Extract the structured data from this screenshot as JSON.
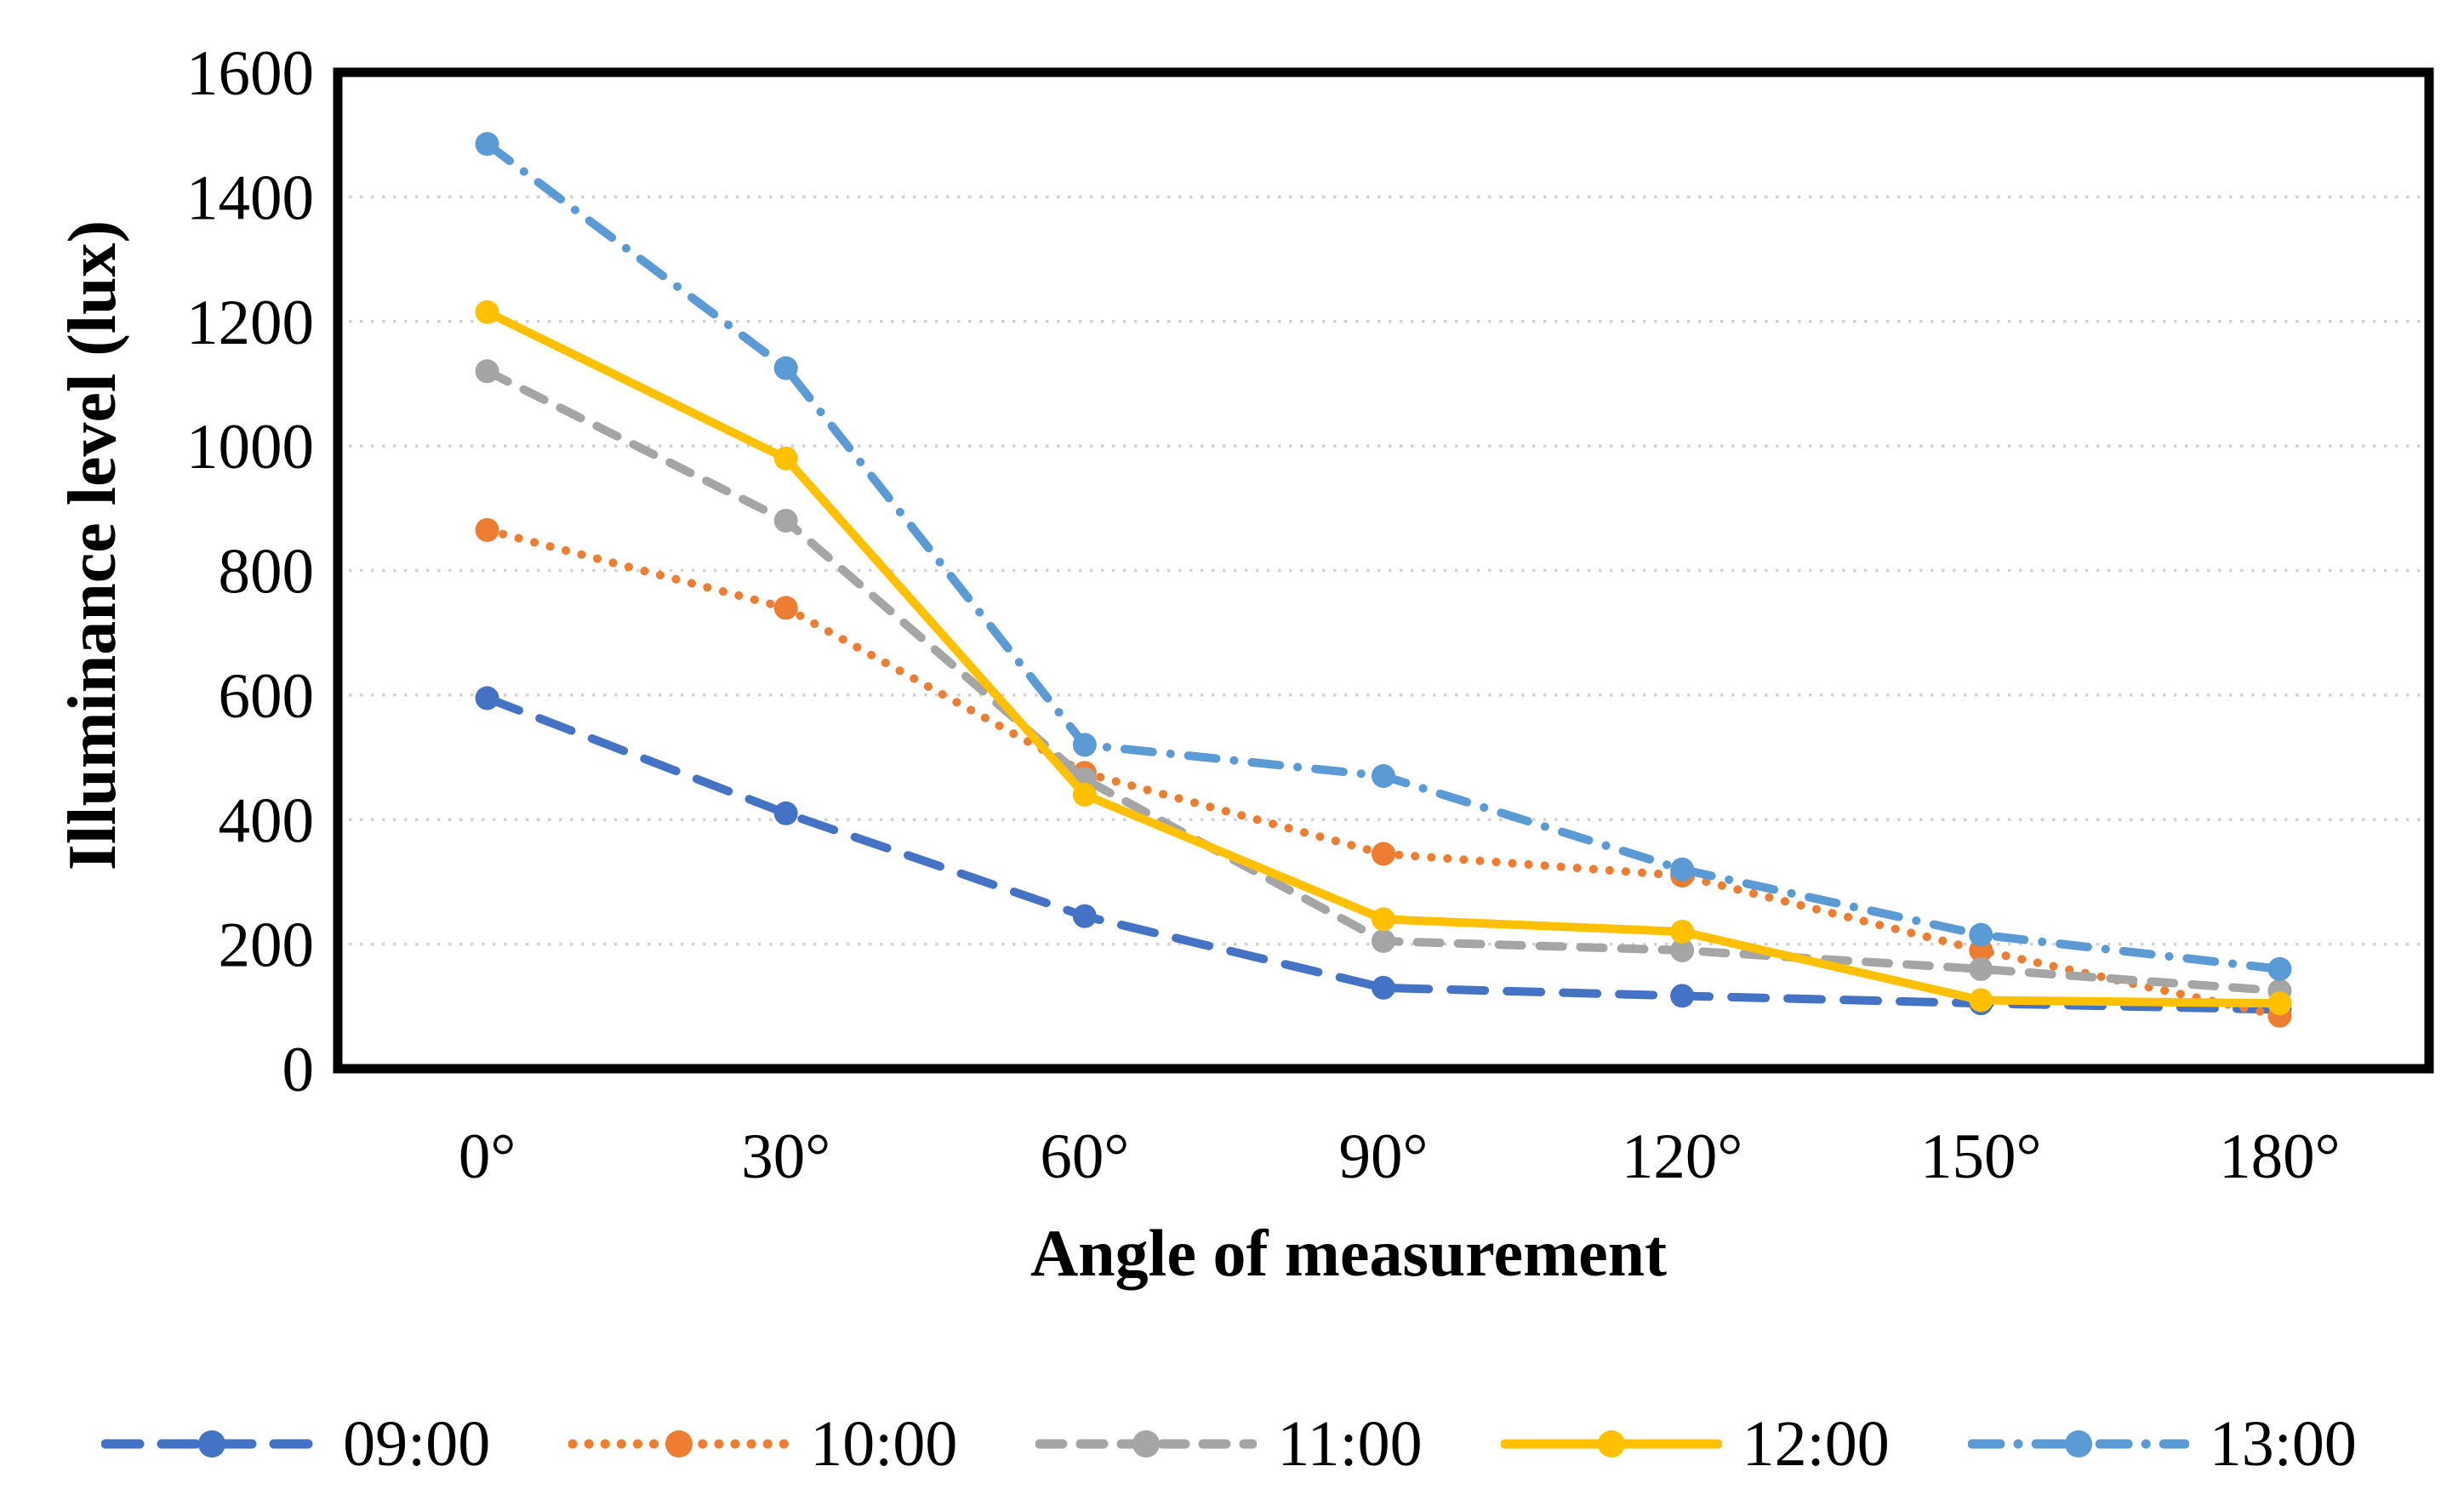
{
  "figure": {
    "background": "#ffffff",
    "axis_color": "#000000",
    "gridline_color": "#d2d2d2"
  },
  "chart_data": {
    "type": "line",
    "title": "",
    "xlabel": "Angle of measurement",
    "ylabel": "Illuminance level (lux)",
    "categories": [
      "0°",
      "30°",
      "60°",
      "90°",
      "120°",
      "150°",
      "180°"
    ],
    "y_ticks": [
      0,
      200,
      400,
      600,
      800,
      1000,
      1200,
      1400,
      1600
    ],
    "ylim": [
      0,
      1600
    ],
    "grid": "horizontal-dotted",
    "legend_position": "bottom",
    "series": [
      {
        "name": "09:00",
        "color": "#4472C4",
        "dash": "long-dash",
        "marker": "circle",
        "values": [
          595,
          410,
          245,
          130,
          117,
          105,
          95
        ]
      },
      {
        "name": "10:00",
        "color": "#ED7D31",
        "dash": "dot",
        "marker": "circle",
        "values": [
          865,
          740,
          475,
          345,
          310,
          190,
          85
        ]
      },
      {
        "name": "11:00",
        "color": "#A5A5A5",
        "dash": "dash",
        "marker": "circle",
        "values": [
          1120,
          880,
          465,
          205,
          190,
          160,
          125
        ]
      },
      {
        "name": "12:00",
        "color": "#FFC000",
        "dash": "solid",
        "marker": "circle",
        "values": [
          1215,
          980,
          440,
          240,
          220,
          110,
          105
        ]
      },
      {
        "name": "13:00",
        "color": "#5B9BD5",
        "dash": "dash-dot",
        "marker": "circle",
        "values": [
          1485,
          1125,
          520,
          470,
          320,
          215,
          160
        ]
      }
    ]
  }
}
